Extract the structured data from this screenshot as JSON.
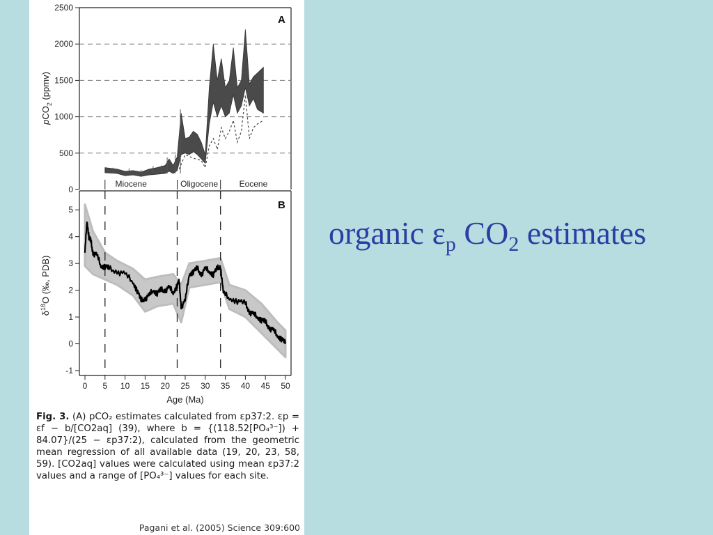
{
  "slide": {
    "title_main": "organic ε",
    "title_sub1": "p",
    "title_mid": " CO",
    "title_sub2": "2",
    "title_end": " estimates"
  },
  "figure": {
    "caption_bold": "Fig. 3.",
    "caption_text": "(A) pCO₂ estimates calculated from εp37:2. εp = εf − b/[CO2aq] (39), where b = {(118.52[PO₄³⁻]) + 84.07}/(25 − εp37:2), calculated from the geometric mean regression of all available data (19, 20, 23, 58, 59). [CO2aq] values were calculated using mean εp37:2 values and a range of [PO₄³⁻] values for each site.",
    "citation": "Pagani et al. (2005) Science 309:600"
  },
  "chart_data": [
    {
      "panel": "A",
      "type": "area",
      "ylabel": "pCO2 (ppmv)",
      "ylim": [
        0,
        2500
      ],
      "yticks": [
        0,
        500,
        1000,
        1500,
        2000,
        2500
      ],
      "xlim": [
        0,
        50
      ],
      "grid": "dashed horizontal at 500-2000",
      "epochs": [
        {
          "name": "Miocene",
          "x": [
            0,
            23
          ]
        },
        {
          "name": "Oligocene",
          "x": [
            23,
            34
          ]
        },
        {
          "name": "Eocene",
          "x": [
            34,
            50
          ]
        }
      ],
      "series": [
        {
          "kind": "band",
          "x": [
            5,
            8,
            10,
            12,
            14,
            16,
            18,
            20,
            21,
            22,
            23,
            24,
            25,
            26,
            27,
            28,
            29,
            30,
            31,
            32,
            33,
            34,
            35,
            36,
            37,
            38,
            39,
            40,
            41,
            42,
            43,
            44.5
          ],
          "upper": [
            300,
            280,
            250,
            260,
            240,
            280,
            300,
            330,
            420,
            330,
            450,
            1050,
            700,
            720,
            800,
            760,
            650,
            480,
            1400,
            2000,
            1500,
            1800,
            1400,
            1500,
            1950,
            1400,
            1500,
            2200,
            1450,
            1550,
            1600,
            1680
          ],
          "lower": [
            230,
            220,
            190,
            200,
            180,
            200,
            210,
            220,
            250,
            220,
            260,
            480,
            500,
            480,
            520,
            480,
            420,
            360,
            900,
            1200,
            1000,
            1150,
            1000,
            1050,
            1300,
            1050,
            1150,
            1400,
            1150,
            1250,
            1100,
            1050
          ]
        },
        {
          "kind": "dashed-lower",
          "x": [
            23.5,
            25,
            27,
            29,
            30,
            31,
            32,
            33,
            34,
            35,
            36,
            37,
            38,
            39,
            40,
            41,
            42,
            43,
            44.5
          ],
          "values": [
            280,
            480,
            430,
            400,
            300,
            600,
            700,
            550,
            850,
            700,
            800,
            950,
            650,
            800,
            1300,
            700,
            850,
            900,
            950
          ]
        }
      ]
    },
    {
      "panel": "B",
      "type": "line",
      "xlabel": "Age (Ma)",
      "ylabel": "δ18O (‰, PDB)",
      "xlim": [
        0,
        50
      ],
      "xticks": [
        0,
        5,
        10,
        15,
        20,
        25,
        30,
        35,
        40,
        45,
        50
      ],
      "ylim": [
        -1,
        5.5
      ],
      "yticks": [
        -1,
        0,
        1,
        2,
        3,
        4,
        5
      ],
      "boundaries": [
        5,
        23,
        33.8
      ],
      "series": [
        {
          "kind": "mean",
          "x": [
            0,
            0.5,
            1,
            1.5,
            2,
            3,
            4,
            5,
            6,
            8,
            10,
            12,
            13,
            14,
            15,
            16,
            17,
            18,
            19,
            20,
            21,
            22,
            23,
            23.5,
            24,
            25,
            26,
            27,
            28,
            29,
            30,
            31,
            32,
            33,
            33.8,
            34.5,
            36,
            38,
            40,
            41,
            42,
            43,
            44,
            45,
            46,
            47,
            48,
            49,
            50
          ],
          "values": [
            3.4,
            4.6,
            4.0,
            3.8,
            3.4,
            3.3,
            2.9,
            2.9,
            2.8,
            2.7,
            2.6,
            2.3,
            2.0,
            1.6,
            1.7,
            1.8,
            2.0,
            1.9,
            2.0,
            2.0,
            2.1,
            1.9,
            2.2,
            2.3,
            1.4,
            1.6,
            2.6,
            2.7,
            2.8,
            2.6,
            2.8,
            2.7,
            2.6,
            2.8,
            2.9,
            1.9,
            1.7,
            1.6,
            1.5,
            1.2,
            1.1,
            1.0,
            0.9,
            0.8,
            0.6,
            0.5,
            0.3,
            0.2,
            0.0
          ]
        },
        {
          "kind": "scatter-envelope",
          "x": [
            0,
            2,
            5,
            8,
            12,
            15,
            18,
            22,
            24,
            26,
            30,
            33.8,
            36,
            40,
            44,
            48,
            50
          ],
          "upper": [
            5.2,
            4.2,
            3.4,
            3.1,
            2.8,
            2.4,
            2.5,
            2.6,
            2.2,
            3.0,
            3.1,
            3.2,
            2.2,
            2.0,
            1.5,
            0.8,
            0.5
          ],
          "lower": [
            2.9,
            2.6,
            2.4,
            2.2,
            1.8,
            1.2,
            1.4,
            1.5,
            0.8,
            2.1,
            2.2,
            2.3,
            1.3,
            1.0,
            0.4,
            -0.2,
            -0.5
          ]
        }
      ]
    }
  ]
}
